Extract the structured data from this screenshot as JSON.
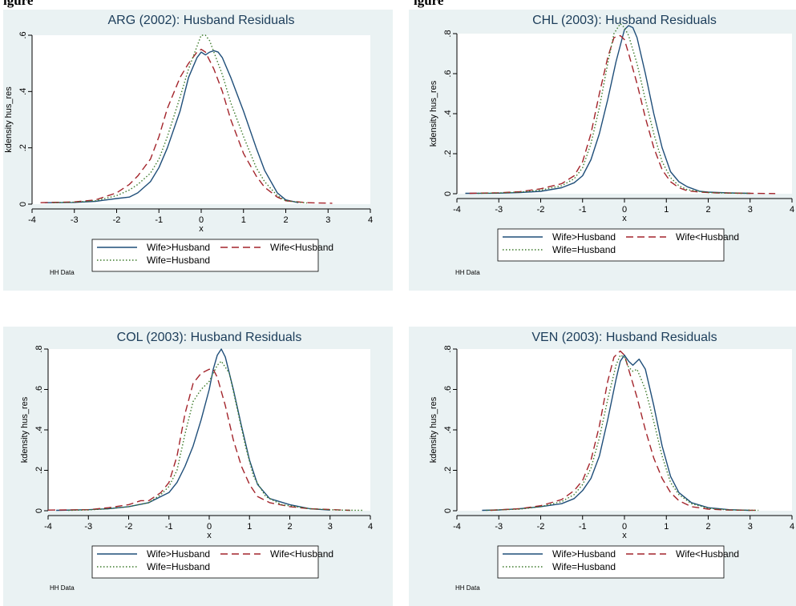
{
  "figure": {
    "caption_left": "igure",
    "caption_right": "igure"
  },
  "colors": {
    "panel_bg": "#eaf2f3",
    "plot_bg": "#ffffff",
    "title": "#1c3d5a",
    "wife_gt_husband": "#1f4e79",
    "wife_lt_husband": "#a3242b",
    "wife_eq_husband": "#3c7a2a"
  },
  "chart_data": [
    {
      "type": "line",
      "title": "ARG (2002): Husband Residuals",
      "xlabel": "x",
      "ylabel": "kdensity hus_res",
      "xlim": [
        -4,
        4
      ],
      "ylim": [
        0,
        0.6
      ],
      "xticks": [
        "-4",
        "-3",
        "-2",
        "-1",
        "0",
        "1",
        "2",
        "3",
        "4"
      ],
      "yticks": [
        "0",
        ".2",
        ".4",
        ".6"
      ],
      "legend": {
        "position": "bottom",
        "entries": [
          "Wife>Husband",
          "Wife<Husband",
          "Wife=Husband"
        ]
      },
      "note": "HH Data",
      "series": [
        {
          "name": "Wife>Husband",
          "style": "solid",
          "x": [
            -3.7,
            -3,
            -2.5,
            -2,
            -1.7,
            -1.5,
            -1.2,
            -1,
            -0.8,
            -0.5,
            -0.3,
            -0.1,
            0,
            0.1,
            0.2,
            0.3,
            0.4,
            0.5,
            0.7,
            1,
            1.3,
            1.5,
            1.8,
            2,
            2.3
          ],
          "y": [
            0.005,
            0.006,
            0.01,
            0.02,
            0.025,
            0.04,
            0.08,
            0.13,
            0.2,
            0.33,
            0.45,
            0.52,
            0.54,
            0.53,
            0.54,
            0.545,
            0.54,
            0.52,
            0.45,
            0.33,
            0.2,
            0.12,
            0.04,
            0.015,
            0.005
          ]
        },
        {
          "name": "Wife<Husband",
          "style": "dashed",
          "x": [
            -3.8,
            -3,
            -2.5,
            -2,
            -1.7,
            -1.5,
            -1.2,
            -1,
            -0.8,
            -0.5,
            -0.3,
            -0.1,
            0,
            0.1,
            0.3,
            0.5,
            0.7,
            1,
            1.3,
            1.5,
            1.8,
            2,
            2.5,
            3.1
          ],
          "y": [
            0.005,
            0.008,
            0.015,
            0.04,
            0.07,
            0.1,
            0.16,
            0.24,
            0.34,
            0.45,
            0.5,
            0.54,
            0.55,
            0.54,
            0.48,
            0.4,
            0.3,
            0.18,
            0.1,
            0.06,
            0.025,
            0.012,
            0.005,
            0.003
          ]
        },
        {
          "name": "Wife=Husband",
          "style": "dotted",
          "x": [
            -3.5,
            -3,
            -2.5,
            -2,
            -1.7,
            -1.5,
            -1.2,
            -1,
            -0.8,
            -0.5,
            -0.3,
            -0.1,
            0,
            0.1,
            0.2,
            0.3,
            0.5,
            0.7,
            1,
            1.3,
            1.5,
            1.8,
            2,
            2.5
          ],
          "y": [
            0.005,
            0.007,
            0.012,
            0.03,
            0.05,
            0.07,
            0.11,
            0.16,
            0.24,
            0.38,
            0.48,
            0.56,
            0.6,
            0.6,
            0.58,
            0.54,
            0.46,
            0.36,
            0.24,
            0.13,
            0.08,
            0.03,
            0.012,
            0.004
          ]
        }
      ]
    },
    {
      "type": "line",
      "title": "CHL (2003): Husband Residuals",
      "xlabel": "x",
      "ylabel": "kdensity hus_res",
      "xlim": [
        -4,
        4
      ],
      "ylim": [
        0,
        0.8
      ],
      "xticks": [
        "-4",
        "-3",
        "-2",
        "-1",
        "0",
        "1",
        "2",
        "3",
        "4"
      ],
      "yticks": [
        "0",
        ".2",
        ".4",
        ".6",
        ".8"
      ],
      "legend": {
        "position": "bottom",
        "entries": [
          "Wife>Husband",
          "Wife<Husband",
          "Wife=Husband"
        ]
      },
      "note": "HH Data",
      "series": [
        {
          "name": "Wife>Husband",
          "style": "solid",
          "x": [
            -3.8,
            -3,
            -2.5,
            -2,
            -1.5,
            -1.2,
            -1,
            -0.8,
            -0.6,
            -0.4,
            -0.2,
            0,
            0.1,
            0.2,
            0.3,
            0.5,
            0.7,
            0.9,
            1.1,
            1.3,
            1.5,
            1.8,
            2,
            2.5,
            3
          ],
          "y": [
            0.002,
            0.003,
            0.006,
            0.012,
            0.03,
            0.055,
            0.09,
            0.17,
            0.3,
            0.47,
            0.66,
            0.82,
            0.84,
            0.83,
            0.78,
            0.6,
            0.4,
            0.23,
            0.11,
            0.06,
            0.035,
            0.012,
            0.008,
            0.004,
            0.002
          ]
        },
        {
          "name": "Wife<Husband",
          "style": "dashed",
          "x": [
            -3.7,
            -3,
            -2.5,
            -2,
            -1.5,
            -1.2,
            -1,
            -0.8,
            -0.6,
            -0.4,
            -0.25,
            -0.1,
            0,
            0.1,
            0.3,
            0.5,
            0.7,
            0.9,
            1.1,
            1.3,
            1.5,
            1.8,
            2.2,
            3,
            3.6
          ],
          "y": [
            0.002,
            0.005,
            0.01,
            0.025,
            0.05,
            0.09,
            0.16,
            0.3,
            0.5,
            0.68,
            0.78,
            0.79,
            0.77,
            0.7,
            0.55,
            0.38,
            0.23,
            0.12,
            0.06,
            0.03,
            0.015,
            0.008,
            0.004,
            0.002,
            0.001
          ]
        },
        {
          "name": "Wife=Husband",
          "style": "dotted",
          "x": [
            -3.5,
            -3,
            -2.5,
            -2,
            -1.5,
            -1.2,
            -1,
            -0.8,
            -0.6,
            -0.4,
            -0.25,
            -0.1,
            0,
            0.1,
            0.3,
            0.5,
            0.7,
            0.9,
            1.1,
            1.3,
            1.5,
            2,
            2.5,
            3
          ],
          "y": [
            0.002,
            0.004,
            0.008,
            0.018,
            0.04,
            0.075,
            0.13,
            0.25,
            0.43,
            0.65,
            0.8,
            0.85,
            0.83,
            0.79,
            0.65,
            0.47,
            0.3,
            0.16,
            0.08,
            0.04,
            0.02,
            0.006,
            0.003,
            0.002
          ]
        }
      ]
    },
    {
      "type": "line",
      "title": "COL (2003): Husband Residuals",
      "xlabel": "x",
      "ylabel": "kdensity hus_res",
      "xlim": [
        -4,
        4
      ],
      "ylim": [
        0,
        0.8
      ],
      "xticks": [
        "-4",
        "-3",
        "-2",
        "-1",
        "0",
        "1",
        "2",
        "3",
        "4"
      ],
      "yticks": [
        "0",
        ".2",
        ".4",
        ".6",
        ".8"
      ],
      "legend": {
        "position": "bottom",
        "entries": [
          "Wife>Husband",
          "Wife<Husband",
          "Wife=Husband"
        ]
      },
      "note": "HH Data",
      "series": [
        {
          "name": "Wife>Husband",
          "style": "solid",
          "x": [
            -3.8,
            -3,
            -2.5,
            -2,
            -1.5,
            -1.2,
            -1,
            -0.8,
            -0.6,
            -0.4,
            -0.2,
            0,
            0.1,
            0.2,
            0.3,
            0.4,
            0.6,
            0.8,
            1,
            1.2,
            1.5,
            2,
            2.5,
            3
          ],
          "y": [
            0.002,
            0.005,
            0.01,
            0.02,
            0.04,
            0.07,
            0.09,
            0.14,
            0.22,
            0.32,
            0.45,
            0.6,
            0.7,
            0.77,
            0.8,
            0.76,
            0.6,
            0.42,
            0.25,
            0.13,
            0.06,
            0.03,
            0.01,
            0.003
          ]
        },
        {
          "name": "Wife<Husband",
          "style": "dashed",
          "x": [
            -4,
            -3,
            -2.5,
            -2,
            -1.7,
            -1.5,
            -1.2,
            -1,
            -0.8,
            -0.6,
            -0.4,
            -0.2,
            0,
            0.1,
            0.2,
            0.4,
            0.6,
            0.8,
            1,
            1.2,
            1.5,
            2,
            2.5,
            3.5
          ],
          "y": [
            0.003,
            0.005,
            0.015,
            0.03,
            0.05,
            0.05,
            0.09,
            0.14,
            0.27,
            0.48,
            0.63,
            0.68,
            0.7,
            0.7,
            0.66,
            0.52,
            0.35,
            0.22,
            0.13,
            0.07,
            0.04,
            0.02,
            0.01,
            0.002
          ]
        },
        {
          "name": "Wife=Husband",
          "style": "dotted",
          "x": [
            -3.5,
            -3,
            -2.5,
            -2,
            -1.5,
            -1.2,
            -1,
            -0.8,
            -0.6,
            -0.4,
            -0.2,
            0,
            0.1,
            0.2,
            0.3,
            0.5,
            0.7,
            0.9,
            1.1,
            1.4,
            1.8,
            2.5,
            3.2,
            3.8
          ],
          "y": [
            0.002,
            0.004,
            0.01,
            0.02,
            0.04,
            0.08,
            0.12,
            0.2,
            0.38,
            0.54,
            0.6,
            0.64,
            0.68,
            0.72,
            0.74,
            0.68,
            0.5,
            0.32,
            0.17,
            0.07,
            0.03,
            0.01,
            0.003,
            0.002
          ]
        }
      ]
    },
    {
      "type": "line",
      "title": "VEN (2003): Husband Residuals",
      "xlabel": "x",
      "ylabel": "kdensity hus_res",
      "xlim": [
        -4,
        4
      ],
      "ylim": [
        0,
        0.8
      ],
      "xticks": [
        "-4",
        "-3",
        "-2",
        "-1",
        "0",
        "1",
        "2",
        "3",
        "4"
      ],
      "yticks": [
        "0",
        ".2",
        ".4",
        ".6",
        ".8"
      ],
      "legend": {
        "position": "bottom",
        "entries": [
          "Wife>Husband",
          "Wife<Husband",
          "Wife=Husband"
        ]
      },
      "note": "HH Data",
      "series": [
        {
          "name": "Wife>Husband",
          "style": "solid",
          "x": [
            -3.4,
            -3,
            -2.5,
            -2,
            -1.5,
            -1.2,
            -1,
            -0.8,
            -0.6,
            -0.4,
            -0.2,
            -0.1,
            0,
            0.1,
            0.2,
            0.35,
            0.5,
            0.7,
            0.9,
            1.1,
            1.3,
            1.6,
            2,
            2.5,
            3
          ],
          "y": [
            0.002,
            0.004,
            0.01,
            0.02,
            0.035,
            0.06,
            0.1,
            0.16,
            0.27,
            0.45,
            0.65,
            0.74,
            0.77,
            0.74,
            0.72,
            0.75,
            0.7,
            0.52,
            0.32,
            0.17,
            0.09,
            0.04,
            0.015,
            0.005,
            0.002
          ]
        },
        {
          "name": "Wife<Husband",
          "style": "dashed",
          "x": [
            -3.2,
            -2.5,
            -2,
            -1.5,
            -1.2,
            -1,
            -0.8,
            -0.6,
            -0.4,
            -0.25,
            -0.1,
            0,
            0.1,
            0.3,
            0.5,
            0.7,
            0.9,
            1.1,
            1.3,
            1.6,
            2,
            2.5,
            3.2
          ],
          "y": [
            0.002,
            0.01,
            0.025,
            0.055,
            0.1,
            0.15,
            0.25,
            0.42,
            0.64,
            0.76,
            0.79,
            0.77,
            0.7,
            0.56,
            0.4,
            0.26,
            0.16,
            0.09,
            0.05,
            0.02,
            0.008,
            0.003,
            0.002
          ]
        },
        {
          "name": "Wife=Husband",
          "style": "dotted",
          "x": [
            -3.3,
            -2.5,
            -2,
            -1.5,
            -1.2,
            -1,
            -0.8,
            -0.6,
            -0.4,
            -0.2,
            -0.1,
            0,
            0.1,
            0.2,
            0.3,
            0.5,
            0.7,
            0.9,
            1.1,
            1.3,
            1.6,
            2,
            2.5,
            3.2
          ],
          "y": [
            0.002,
            0.008,
            0.02,
            0.045,
            0.08,
            0.13,
            0.21,
            0.36,
            0.55,
            0.72,
            0.77,
            0.76,
            0.71,
            0.69,
            0.7,
            0.6,
            0.44,
            0.27,
            0.14,
            0.08,
            0.035,
            0.012,
            0.004,
            0.002
          ]
        }
      ]
    }
  ]
}
